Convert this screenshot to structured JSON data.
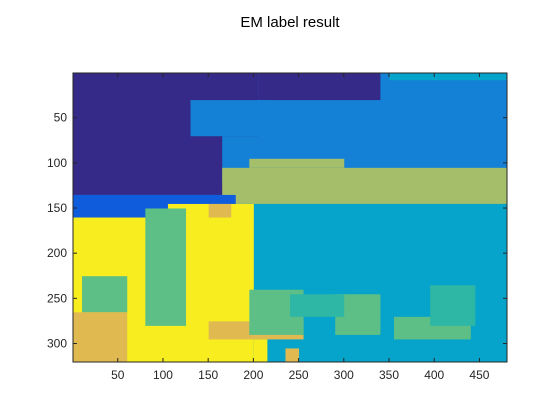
{
  "chart_data": {
    "type": "heatmap",
    "title": "EM label result",
    "xlabel": "",
    "ylabel": "",
    "xlim": [
      0.5,
      480.5
    ],
    "ylim": [
      0.5,
      320.5
    ],
    "y_reversed": true,
    "x_ticks": [
      50,
      100,
      150,
      200,
      250,
      300,
      350,
      400,
      450
    ],
    "y_ticks": [
      50,
      100,
      150,
      200,
      250,
      300
    ],
    "grid": false,
    "legend": "none",
    "classes": [
      {
        "label": 1,
        "color": "#352a87"
      },
      {
        "label": 2,
        "color": "#0f5cdd"
      },
      {
        "label": 3,
        "color": "#1481d6"
      },
      {
        "label": 4,
        "color": "#06a4ca"
      },
      {
        "label": 5,
        "color": "#2eb7a4"
      },
      {
        "label": 6,
        "color": "#5dbf85"
      },
      {
        "label": 7,
        "color": "#a5be6a"
      },
      {
        "label": 8,
        "color": "#e1b951"
      },
      {
        "label": 9,
        "color": "#f8ed1f"
      }
    ],
    "regions": [
      {
        "label": 3,
        "x": [
          0,
          480
        ],
        "y": [
          0,
          320
        ]
      },
      {
        "label": 1,
        "x": [
          0,
          205
        ],
        "y": [
          0,
          135
        ]
      },
      {
        "label": 1,
        "x": [
          205,
          340
        ],
        "y": [
          0,
          30
        ]
      },
      {
        "label": 3,
        "x": [
          130,
          215
        ],
        "y": [
          30,
          70
        ]
      },
      {
        "label": 3,
        "x": [
          165,
          215
        ],
        "y": [
          70,
          120
        ]
      },
      {
        "label": 4,
        "x": [
          350,
          480
        ],
        "y": [
          0,
          8
        ]
      },
      {
        "label": 7,
        "x": [
          165,
          480
        ],
        "y": [
          105,
          145
        ]
      },
      {
        "label": 7,
        "x": [
          195,
          300
        ],
        "y": [
          95,
          105
        ]
      },
      {
        "label": 2,
        "x": [
          0,
          110
        ],
        "y": [
          135,
          255
        ]
      },
      {
        "label": 2,
        "x": [
          110,
          180
        ],
        "y": [
          135,
          155
        ]
      },
      {
        "label": 4,
        "x": [
          180,
          480
        ],
        "y": [
          145,
          320
        ]
      },
      {
        "label": 9,
        "x": [
          0,
          200
        ],
        "y": [
          160,
          320
        ]
      },
      {
        "label": 9,
        "x": [
          105,
          200
        ],
        "y": [
          145,
          160
        ]
      },
      {
        "label": 6,
        "x": [
          10,
          60
        ],
        "y": [
          225,
          265
        ]
      },
      {
        "label": 6,
        "x": [
          80,
          125
        ],
        "y": [
          150,
          280
        ]
      },
      {
        "label": 8,
        "x": [
          0,
          60
        ],
        "y": [
          265,
          320
        ]
      },
      {
        "label": 8,
        "x": [
          150,
          255
        ],
        "y": [
          275,
          295
        ]
      },
      {
        "label": 8,
        "x": [
          150,
          175
        ],
        "y": [
          145,
          160
        ]
      },
      {
        "label": 6,
        "x": [
          195,
          255
        ],
        "y": [
          240,
          290
        ]
      },
      {
        "label": 6,
        "x": [
          290,
          340
        ],
        "y": [
          245,
          290
        ]
      },
      {
        "label": 6,
        "x": [
          355,
          440
        ],
        "y": [
          270,
          295
        ]
      },
      {
        "label": 5,
        "x": [
          395,
          445
        ],
        "y": [
          235,
          280
        ]
      },
      {
        "label": 5,
        "x": [
          240,
          300
        ],
        "y": [
          245,
          270
        ]
      },
      {
        "label": 9,
        "x": [
          200,
          215
        ],
        "y": [
          295,
          320
        ]
      },
      {
        "label": 8,
        "x": [
          235,
          250
        ],
        "y": [
          305,
          320
        ]
      }
    ]
  }
}
